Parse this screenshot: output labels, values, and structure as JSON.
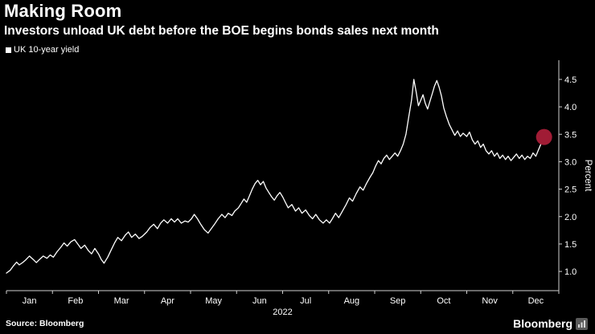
{
  "header": {
    "title": "Making Room",
    "subtitle": "Investors unload UK debt before the BOE begins bonds sales next month"
  },
  "legend": {
    "label": "UK 10-year yield",
    "marker_color": "#ffffff"
  },
  "footer": {
    "source": "Source: Bloomberg",
    "logo_text": "Bloomberg"
  },
  "colors": {
    "background": "#000000",
    "text": "#ffffff",
    "axis": "#d0d0d0",
    "line": "#ffffff",
    "end_marker": "#a01c35"
  },
  "chart_data": {
    "type": "line",
    "title": "Making Room",
    "subtitle": "Investors unload UK debt before the BOE begins bonds sales next month",
    "xlabel": "2022",
    "ylabel": "Percent",
    "x_unit": "fractional month, 0 = Jan 1 2022, 12 = Dec 31 2022",
    "x_tick_labels": [
      "Jan",
      "Feb",
      "Mar",
      "Apr",
      "May",
      "Jun",
      "Jul",
      "Aug",
      "Sep",
      "Oct",
      "Nov",
      "Dec"
    ],
    "y_ticks": [
      1.0,
      1.5,
      2.0,
      2.5,
      3.0,
      3.5,
      4.0,
      4.5
    ],
    "xlim": [
      0,
      12
    ],
    "ylim": [
      0.65,
      4.85
    ],
    "grid": false,
    "legend_position": "top-left",
    "end_marker": {
      "x": 11.68,
      "y": 3.45,
      "radius": 10,
      "color": "#a01c35"
    },
    "series": [
      {
        "name": "UK 10-year yield",
        "color": "#ffffff",
        "x": [
          0.0,
          0.08,
          0.15,
          0.22,
          0.28,
          0.35,
          0.42,
          0.5,
          0.58,
          0.65,
          0.72,
          0.8,
          0.88,
          0.95,
          1.02,
          1.1,
          1.18,
          1.25,
          1.32,
          1.4,
          1.48,
          1.55,
          1.62,
          1.7,
          1.78,
          1.85,
          1.92,
          2.0,
          2.06,
          2.12,
          2.2,
          2.28,
          2.35,
          2.42,
          2.5,
          2.58,
          2.65,
          2.72,
          2.8,
          2.88,
          2.95,
          3.05,
          3.12,
          3.2,
          3.28,
          3.35,
          3.42,
          3.5,
          3.58,
          3.65,
          3.72,
          3.8,
          3.88,
          3.95,
          4.02,
          4.08,
          4.15,
          4.22,
          4.3,
          4.38,
          4.45,
          4.52,
          4.6,
          4.68,
          4.75,
          4.82,
          4.9,
          4.96,
          5.04,
          5.1,
          5.16,
          5.22,
          5.28,
          5.34,
          5.4,
          5.46,
          5.52,
          5.58,
          5.64,
          5.7,
          5.76,
          5.82,
          5.88,
          5.94,
          6.0,
          6.06,
          6.12,
          6.2,
          6.28,
          6.35,
          6.42,
          6.5,
          6.58,
          6.65,
          6.72,
          6.8,
          6.88,
          6.95,
          7.02,
          7.08,
          7.15,
          7.22,
          7.3,
          7.38,
          7.45,
          7.52,
          7.6,
          7.68,
          7.75,
          7.82,
          7.9,
          7.96,
          8.02,
          8.08,
          8.14,
          8.2,
          8.26,
          8.32,
          8.38,
          8.44,
          8.5,
          8.56,
          8.62,
          8.68,
          8.74,
          8.8,
          8.85,
          8.9,
          8.95,
          9.0,
          9.05,
          9.1,
          9.15,
          9.2,
          9.25,
          9.3,
          9.35,
          9.4,
          9.45,
          9.5,
          9.56,
          9.62,
          9.68,
          9.74,
          9.8,
          9.86,
          9.92,
          10.0,
          10.06,
          10.12,
          10.18,
          10.24,
          10.3,
          10.36,
          10.42,
          10.48,
          10.54,
          10.6,
          10.66,
          10.72,
          10.78,
          10.84,
          10.9,
          10.96,
          11.02,
          11.08,
          11.14,
          11.2,
          11.26,
          11.32,
          11.38,
          11.44,
          11.5,
          11.56,
          11.62,
          11.68
        ],
        "y": [
          0.97,
          1.02,
          1.1,
          1.17,
          1.12,
          1.16,
          1.21,
          1.28,
          1.22,
          1.16,
          1.22,
          1.28,
          1.24,
          1.3,
          1.26,
          1.36,
          1.44,
          1.52,
          1.46,
          1.54,
          1.58,
          1.5,
          1.42,
          1.48,
          1.38,
          1.32,
          1.42,
          1.32,
          1.22,
          1.15,
          1.26,
          1.4,
          1.52,
          1.62,
          1.56,
          1.66,
          1.72,
          1.62,
          1.68,
          1.6,
          1.64,
          1.72,
          1.8,
          1.86,
          1.78,
          1.88,
          1.94,
          1.88,
          1.96,
          1.9,
          1.96,
          1.88,
          1.92,
          1.9,
          1.96,
          2.04,
          1.96,
          1.86,
          1.76,
          1.7,
          1.78,
          1.86,
          1.96,
          2.04,
          1.98,
          2.06,
          2.02,
          2.1,
          2.16,
          2.24,
          2.32,
          2.26,
          2.38,
          2.5,
          2.6,
          2.66,
          2.58,
          2.64,
          2.52,
          2.44,
          2.36,
          2.3,
          2.38,
          2.44,
          2.36,
          2.26,
          2.16,
          2.22,
          2.1,
          2.16,
          2.06,
          2.12,
          2.02,
          1.96,
          2.04,
          1.94,
          1.88,
          1.94,
          1.88,
          1.96,
          2.06,
          1.98,
          2.1,
          2.22,
          2.34,
          2.28,
          2.42,
          2.54,
          2.48,
          2.6,
          2.72,
          2.8,
          2.92,
          3.02,
          2.96,
          3.06,
          3.12,
          3.04,
          3.1,
          3.16,
          3.1,
          3.2,
          3.32,
          3.5,
          3.82,
          4.12,
          4.5,
          4.28,
          4.02,
          4.12,
          4.22,
          4.06,
          3.96,
          4.1,
          4.24,
          4.38,
          4.48,
          4.36,
          4.2,
          3.98,
          3.82,
          3.68,
          3.58,
          3.48,
          3.56,
          3.46,
          3.52,
          3.46,
          3.54,
          3.4,
          3.32,
          3.38,
          3.26,
          3.32,
          3.2,
          3.14,
          3.2,
          3.1,
          3.16,
          3.06,
          3.12,
          3.04,
          3.1,
          3.02,
          3.08,
          3.14,
          3.06,
          3.12,
          3.04,
          3.1,
          3.06,
          3.16,
          3.1,
          3.22,
          3.34,
          3.45
        ]
      }
    ]
  }
}
